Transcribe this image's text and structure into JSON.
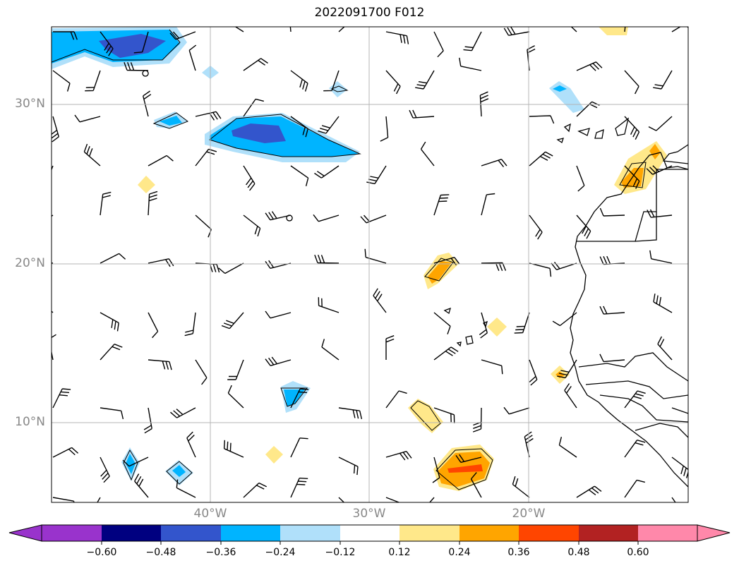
{
  "title": "2022091700 F012",
  "map": {
    "lat_labels": [
      "30°N",
      "20°N",
      "10°N"
    ],
    "lon_labels": [
      "40°W",
      "30°W",
      "20°W"
    ],
    "extent": {
      "lon": [
        -50,
        -10
      ],
      "lat": [
        5,
        35
      ]
    },
    "grid": true
  },
  "colorbar": {
    "levels": [
      "−0.60",
      "−0.48",
      "−0.36",
      "−0.24",
      "−0.12",
      "0.12",
      "0.24",
      "0.36",
      "0.48",
      "0.60"
    ],
    "colors": [
      "#9933cc",
      "#000080",
      "#3355cc",
      "#00b4ff",
      "#b0e0fa",
      "#ffffff",
      "#ffe88a",
      "#ffa500",
      "#ff4500",
      "#b22222",
      "#ff88aa"
    ]
  }
}
